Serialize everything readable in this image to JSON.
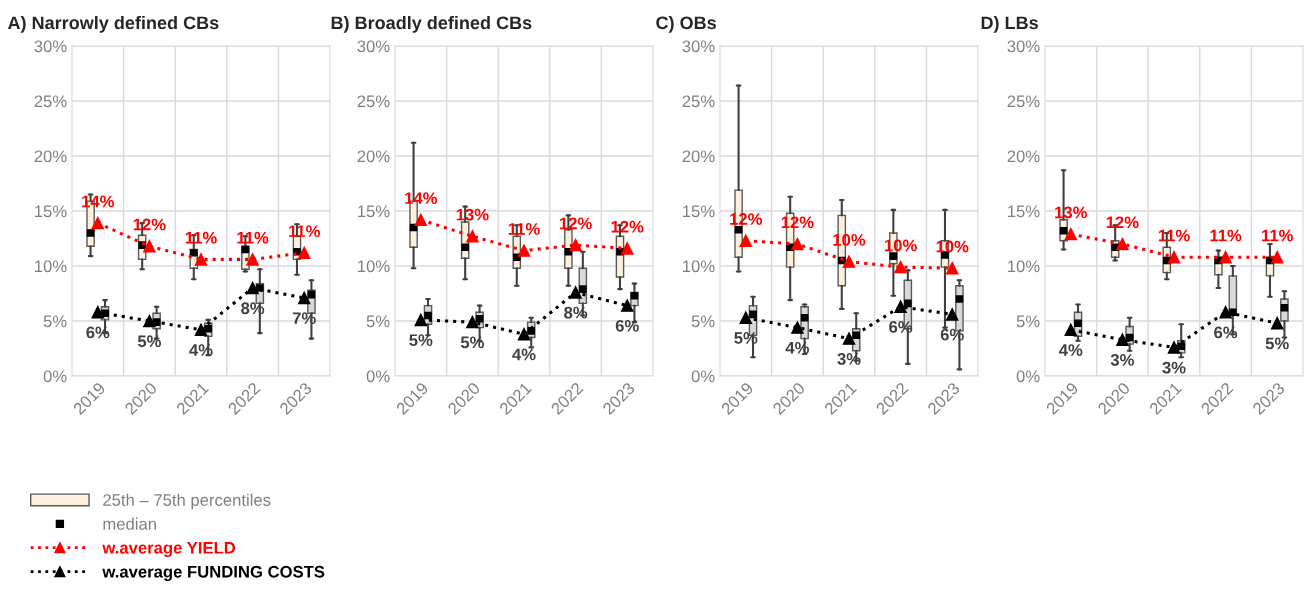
{
  "chart_data": [
    {
      "type": "box",
      "title": "A) Narrowly defined CBs",
      "categories": [
        "2019",
        "2020",
        "2021",
        "2022",
        "2023"
      ],
      "ylim": [
        0,
        30
      ],
      "yticks": [
        {
          "value": 0,
          "label": "0%"
        },
        {
          "value": 5,
          "label": "5%"
        },
        {
          "value": 10,
          "label": "10%"
        },
        {
          "value": 15,
          "label": "15%"
        },
        {
          "value": 20,
          "label": "20%"
        },
        {
          "value": 25,
          "label": "25%"
        },
        {
          "value": 30,
          "label": "30%"
        }
      ],
      "grid": true,
      "legend": "bottom",
      "annotations": [
        "median"
      ],
      "series": [
        {
          "name": "25th – 75th percentiles",
          "color": "#fdf1dd",
          "boxes": [
            {
              "low": 10.9,
              "q1": 11.8,
              "median": 13.0,
              "q3": 15.9,
              "high": 16.5
            },
            {
              "low": 9.7,
              "q1": 10.6,
              "median": 11.9,
              "q3": 12.8,
              "high": 13.9
            },
            {
              "low": 8.8,
              "q1": 9.8,
              "median": 11.2,
              "q3": 11.5,
              "high": 12.8
            },
            {
              "low": 9.5,
              "q1": 9.7,
              "median": 11.5,
              "q3": 11.8,
              "high": 12.7
            },
            {
              "low": 9.2,
              "q1": 10.6,
              "median": 11.3,
              "q3": 12.7,
              "high": 13.8
            }
          ]
        },
        {
          "color": "#d9d9d9",
          "boxes": [
            {
              "low": 3.9,
              "q1": 5.1,
              "median": 5.7,
              "q3": 6.3,
              "high": 6.9
            },
            {
              "low": 3.4,
              "q1": 4.3,
              "median": 4.9,
              "q3": 5.7,
              "high": 6.3
            },
            {
              "low": 1.9,
              "q1": 3.6,
              "median": 4.3,
              "q3": 4.8,
              "high": 5.1
            },
            {
              "low": 3.9,
              "q1": 6.6,
              "median": 8.0,
              "q3": 8.4,
              "high": 9.7
            },
            {
              "low": 3.4,
              "q1": 5.7,
              "median": 7.4,
              "q3": 7.8,
              "high": 8.7
            }
          ]
        },
        {
          "type": "line",
          "name": "w.average YIELD",
          "color": "#ff0000",
          "marker": "triangle",
          "line_style": "dotted",
          "values": [
            13.9,
            11.8,
            10.6,
            10.6,
            11.2
          ],
          "value_labels": [
            "14%",
            "12%",
            "11%",
            "11%",
            "11%"
          ]
        },
        {
          "type": "line",
          "name": "w.average FUNDING COSTS",
          "color": "#000000",
          "marker": "triangle",
          "line_style": "dotted",
          "values": [
            5.8,
            5.0,
            4.2,
            8.0,
            7.1
          ],
          "value_labels": [
            "6%",
            "5%",
            "4%",
            "8%",
            "7%"
          ]
        }
      ]
    },
    {
      "type": "box",
      "title": "B) Broadly defined CBs",
      "categories": [
        "2019",
        "2020",
        "2021",
        "2022",
        "2023"
      ],
      "ylim": [
        0,
        30
      ],
      "yticks": [
        {
          "value": 0,
          "label": "0%"
        },
        {
          "value": 5,
          "label": "5%"
        },
        {
          "value": 10,
          "label": "10%"
        },
        {
          "value": 15,
          "label": "15%"
        },
        {
          "value": 20,
          "label": "20%"
        },
        {
          "value": 25,
          "label": "25%"
        },
        {
          "value": 30,
          "label": "30%"
        }
      ],
      "grid": true,
      "series": [
        {
          "color": "#fdf1dd",
          "boxes": [
            {
              "low": 9.8,
              "q1": 11.7,
              "median": 13.5,
              "q3": 15.9,
              "high": 21.2
            },
            {
              "low": 8.8,
              "q1": 10.7,
              "median": 11.7,
              "q3": 14.0,
              "high": 15.4
            },
            {
              "low": 8.2,
              "q1": 9.8,
              "median": 10.8,
              "q3": 12.7,
              "high": 13.7
            },
            {
              "low": 8.2,
              "q1": 9.8,
              "median": 11.3,
              "q3": 13.3,
              "high": 14.6
            },
            {
              "low": 7.9,
              "q1": 9.0,
              "median": 11.3,
              "q3": 12.7,
              "high": 13.7
            }
          ]
        },
        {
          "color": "#d9d9d9",
          "boxes": [
            {
              "low": 3.7,
              "q1": 4.7,
              "median": 5.5,
              "q3": 6.4,
              "high": 7.0
            },
            {
              "low": 3.2,
              "q1": 4.4,
              "median": 5.2,
              "q3": 5.8,
              "high": 6.4
            },
            {
              "low": 2.6,
              "q1": 3.5,
              "median": 4.1,
              "q3": 4.9,
              "high": 5.3
            },
            {
              "low": 5.5,
              "q1": 6.6,
              "median": 7.9,
              "q3": 9.8,
              "high": 11.3
            },
            {
              "low": 4.9,
              "q1": 6.4,
              "median": 7.3,
              "q3": 7.6,
              "high": 8.4
            }
          ]
        },
        {
          "type": "line",
          "color": "#ff0000",
          "marker": "triangle",
          "line_style": "dotted",
          "values": [
            14.2,
            12.7,
            11.4,
            11.9,
            11.6
          ],
          "value_labels": [
            "14%",
            "13%",
            "11%",
            "12%",
            "12%"
          ]
        },
        {
          "type": "line",
          "color": "#000000",
          "marker": "triangle",
          "line_style": "dotted",
          "values": [
            5.1,
            4.9,
            3.8,
            7.6,
            6.4
          ],
          "value_labels": [
            "5%",
            "5%",
            "4%",
            "8%",
            "6%"
          ]
        }
      ]
    },
    {
      "type": "box",
      "title": "C) OBs",
      "categories": [
        "2019",
        "2020",
        "2021",
        "2022",
        "2023"
      ],
      "ylim": [
        0,
        30
      ],
      "yticks": [
        {
          "value": 0,
          "label": "0%"
        },
        {
          "value": 5,
          "label": "5%"
        },
        {
          "value": 10,
          "label": "10%"
        },
        {
          "value": 15,
          "label": "15%"
        },
        {
          "value": 20,
          "label": "20%"
        },
        {
          "value": 25,
          "label": "25%"
        },
        {
          "value": 30,
          "label": "30%"
        }
      ],
      "grid": true,
      "series": [
        {
          "color": "#fdf1dd",
          "boxes": [
            {
              "low": 9.5,
              "q1": 10.8,
              "median": 13.3,
              "q3": 16.9,
              "high": 26.4
            },
            {
              "low": 6.9,
              "q1": 9.9,
              "median": 11.7,
              "q3": 14.8,
              "high": 16.3
            },
            {
              "low": 6.1,
              "q1": 8.2,
              "median": 10.5,
              "q3": 14.6,
              "high": 16.0
            },
            {
              "low": 7.3,
              "q1": 10.2,
              "median": 10.9,
              "q3": 13.0,
              "high": 15.1
            },
            {
              "low": 4.4,
              "q1": 9.9,
              "median": 11.0,
              "q3": 12.3,
              "high": 15.1
            }
          ]
        },
        {
          "color": "#d9d9d9",
          "boxes": [
            {
              "low": 1.7,
              "q1": 3.7,
              "median": 5.6,
              "q3": 6.4,
              "high": 7.2
            },
            {
              "low": 2.0,
              "q1": 3.4,
              "median": 5.3,
              "q3": 6.3,
              "high": 6.5
            },
            {
              "low": 1.4,
              "q1": 2.3,
              "median": 3.7,
              "q3": 4.3,
              "high": 5.7
            },
            {
              "low": 1.1,
              "q1": 4.3,
              "median": 6.6,
              "q3": 8.7,
              "high": 9.6
            },
            {
              "low": 0.6,
              "q1": 4.1,
              "median": 7.0,
              "q3": 8.2,
              "high": 8.7
            }
          ]
        },
        {
          "type": "line",
          "color": "#ff0000",
          "marker": "triangle",
          "line_style": "dotted",
          "values": [
            12.3,
            12.0,
            10.4,
            9.9,
            9.8
          ],
          "value_labels": [
            "12%",
            "12%",
            "10%",
            "10%",
            "10%"
          ]
        },
        {
          "type": "line",
          "color": "#000000",
          "marker": "triangle",
          "line_style": "dotted",
          "values": [
            5.3,
            4.4,
            3.4,
            6.3,
            5.6
          ],
          "value_labels": [
            "5%",
            "4%",
            "3%",
            "6%",
            "6%"
          ]
        }
      ]
    },
    {
      "type": "box",
      "title": "D) LBs",
      "categories": [
        "2019",
        "2020",
        "2021",
        "2022",
        "2023"
      ],
      "ylim": [
        0,
        30
      ],
      "yticks": [
        {
          "value": 0,
          "label": "0%"
        },
        {
          "value": 5,
          "label": "5%"
        },
        {
          "value": 10,
          "label": "10%"
        },
        {
          "value": 15,
          "label": "15%"
        },
        {
          "value": 20,
          "label": "20%"
        },
        {
          "value": 25,
          "label": "25%"
        },
        {
          "value": 30,
          "label": "30%"
        }
      ],
      "grid": true,
      "series": [
        {
          "color": "#fdf1dd",
          "boxes": [
            {
              "low": 11.5,
              "q1": 12.3,
              "median": 13.2,
              "q3": 14.2,
              "high": 18.7
            },
            {
              "low": 10.5,
              "q1": 10.8,
              "median": 11.7,
              "q3": 12.3,
              "high": 13.7
            },
            {
              "low": 8.8,
              "q1": 9.4,
              "median": 10.5,
              "q3": 11.7,
              "high": 13.0
            },
            {
              "low": 8.0,
              "q1": 9.2,
              "median": 10.5,
              "q3": 10.8,
              "high": 11.4
            },
            {
              "low": 7.2,
              "q1": 9.1,
              "median": 10.5,
              "q3": 10.8,
              "high": 12.0
            }
          ]
        },
        {
          "color": "#d9d9d9",
          "boxes": [
            {
              "low": 3.2,
              "q1": 3.6,
              "median": 4.8,
              "q3": 5.8,
              "high": 6.5
            },
            {
              "low": 2.3,
              "q1": 2.9,
              "median": 3.5,
              "q3": 4.5,
              "high": 5.3
            },
            {
              "low": 1.7,
              "q1": 2.1,
              "median": 2.7,
              "q3": 3.2,
              "high": 4.7
            },
            {
              "low": 3.8,
              "q1": 5.6,
              "median": 5.8,
              "q3": 9.1,
              "high": 10.0
            },
            {
              "low": 3.5,
              "q1": 5.0,
              "median": 6.2,
              "q3": 7.0,
              "high": 7.7
            }
          ]
        },
        {
          "type": "line",
          "color": "#ff0000",
          "marker": "triangle",
          "line_style": "dotted",
          "values": [
            12.9,
            12.0,
            10.8,
            10.8,
            10.8
          ],
          "value_labels": [
            "13%",
            "12%",
            "11%",
            "11%",
            "11%"
          ]
        },
        {
          "type": "line",
          "color": "#000000",
          "marker": "triangle",
          "line_style": "dotted",
          "values": [
            4.2,
            3.3,
            2.6,
            5.8,
            4.8
          ],
          "value_labels": [
            "4%",
            "3%",
            "3%",
            "6%",
            "5%"
          ]
        }
      ]
    }
  ]
}
